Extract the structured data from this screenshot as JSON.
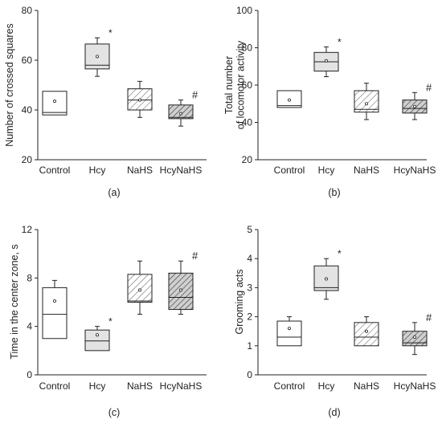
{
  "colors": {
    "box_white": "#ffffff",
    "box_gray": "#e3e3e3",
    "box_hatch_light": "#d2d2d2",
    "box_hatch_dark": "#a8a8a8",
    "stroke": "#222222"
  },
  "chart_data": [
    {
      "type": "box",
      "panel_label": "(a)",
      "title": "",
      "xlabel": "",
      "ylabel": "Number of crossed squares",
      "ylim": [
        20,
        80
      ],
      "yticks": [
        20,
        40,
        60,
        80
      ],
      "categories": [
        "Control",
        "Hcy",
        "NaHS",
        "HcyNaHS"
      ],
      "boxes": [
        {
          "min": 38,
          "q1": 38,
          "median": 39,
          "q3": 47.5,
          "max": 47.5,
          "mean": 43.5,
          "fill": "white",
          "annotation": ""
        },
        {
          "min": 53.5,
          "q1": 56.5,
          "median": 58,
          "q3": 66.5,
          "max": 69,
          "mean": 61.5,
          "fill": "gray",
          "annotation": "*"
        },
        {
          "min": 37,
          "q1": 40,
          "median": 44,
          "q3": 48.5,
          "max": 51.5,
          "mean": 44,
          "fill": "hatch_light",
          "annotation": ""
        },
        {
          "min": 33.5,
          "q1": 36.5,
          "median": 37,
          "q3": 42,
          "max": 44,
          "mean": 38.5,
          "fill": "hatch_dark",
          "annotation": "#"
        }
      ]
    },
    {
      "type": "box",
      "panel_label": "(b)",
      "title": "",
      "xlabel": "",
      "ylabel": "Total number of locomotor activity",
      "ylabel_lines": [
        "Total number",
        "of  locomotor activity"
      ],
      "ylim": [
        20,
        100
      ],
      "yticks": [
        20,
        40,
        60,
        80,
        100
      ],
      "categories": [
        "Control",
        "Hcy",
        "NaHS",
        "HcyNaHS"
      ],
      "boxes": [
        {
          "min": 48,
          "q1": 48,
          "median": 49,
          "q3": 57,
          "max": 57,
          "mean": 52,
          "fill": "white",
          "annotation": ""
        },
        {
          "min": 64.5,
          "q1": 67.5,
          "median": 72.5,
          "q3": 77.5,
          "max": 80.5,
          "mean": 73,
          "fill": "gray",
          "annotation": "*"
        },
        {
          "min": 41.5,
          "q1": 45.5,
          "median": 47,
          "q3": 57,
          "max": 61,
          "mean": 50,
          "fill": "hatch_light",
          "annotation": ""
        },
        {
          "min": 41.5,
          "q1": 45,
          "median": 47.5,
          "q3": 52,
          "max": 56,
          "mean": 48.5,
          "fill": "hatch_dark",
          "annotation": "#"
        }
      ]
    },
    {
      "type": "box",
      "panel_label": "(c)",
      "title": "",
      "xlabel": "",
      "ylabel": "Time in the center zone, s",
      "ylim": [
        0,
        12
      ],
      "yticks": [
        0,
        4,
        8,
        12
      ],
      "categories": [
        "Control",
        "Hcy",
        "NaHS",
        "HcyNaHS"
      ],
      "boxes": [
        {
          "min": 3,
          "q1": 3,
          "median": 5,
          "q3": 7.2,
          "max": 7.8,
          "mean": 6.1,
          "fill": "white",
          "annotation": ""
        },
        {
          "min": 2,
          "q1": 2,
          "median": 2.8,
          "q3": 3.7,
          "max": 4,
          "mean": 3.3,
          "fill": "gray",
          "annotation": "*"
        },
        {
          "min": 5,
          "q1": 6,
          "median": 6.1,
          "q3": 8.3,
          "max": 9.4,
          "mean": 7,
          "fill": "hatch_light",
          "annotation": ""
        },
        {
          "min": 5,
          "q1": 5.4,
          "median": 6.4,
          "q3": 8.4,
          "max": 9.4,
          "mean": 7,
          "fill": "hatch_dark",
          "annotation": "#"
        }
      ]
    },
    {
      "type": "box",
      "panel_label": "(d)",
      "title": "",
      "xlabel": "",
      "ylabel": "Grooming acts",
      "ylim": [
        0,
        5
      ],
      "yticks": [
        0,
        1,
        2,
        3,
        4,
        5
      ],
      "categories": [
        "Control",
        "Hcy",
        "NaHS",
        "HcyNaHS"
      ],
      "boxes": [
        {
          "min": 1,
          "q1": 1,
          "median": 1.3,
          "q3": 1.85,
          "max": 2,
          "mean": 1.6,
          "fill": "white",
          "annotation": ""
        },
        {
          "min": 2.6,
          "q1": 2.9,
          "median": 3,
          "q3": 3.75,
          "max": 4,
          "mean": 3.3,
          "fill": "gray",
          "annotation": "*"
        },
        {
          "min": 1,
          "q1": 1,
          "median": 1.3,
          "q3": 1.8,
          "max": 2,
          "mean": 1.5,
          "fill": "hatch_light",
          "annotation": ""
        },
        {
          "min": 0.7,
          "q1": 1,
          "median": 1.1,
          "q3": 1.5,
          "max": 1.8,
          "mean": 1.3,
          "fill": "hatch_dark",
          "annotation": "#"
        }
      ]
    }
  ]
}
